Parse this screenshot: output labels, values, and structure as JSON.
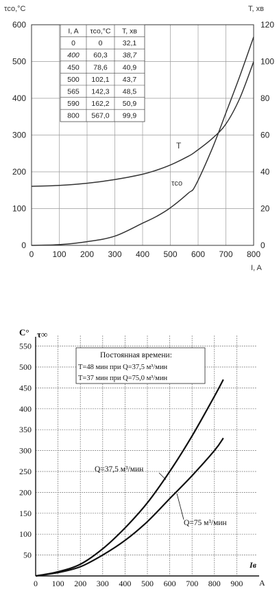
{
  "chart_data": [
    {
      "type": "line",
      "xlabel": "I, A",
      "ylabel_left": "τсо,°С",
      "ylabel_right": "T, хв",
      "xlim": [
        0,
        800
      ],
      "ylim_left": [
        0,
        600
      ],
      "ylim_right": [
        0,
        120
      ],
      "x_ticks": [
        0,
        100,
        200,
        300,
        400,
        500,
        600,
        700,
        800
      ],
      "y_left_ticks": [
        0,
        100,
        200,
        300,
        400,
        500,
        600
      ],
      "y_right_ticks": [
        0,
        20,
        40,
        60,
        80,
        100,
        120
      ],
      "grid": true,
      "series": [
        {
          "name": "T",
          "axis": "right",
          "x": [
            0,
            100,
            200,
            300,
            400,
            450,
            500,
            565,
            590,
            650,
            700,
            750,
            800
          ],
          "y": [
            32.1,
            32.6,
            33.8,
            35.8,
            38.7,
            40.9,
            43.7,
            48.5,
            50.9,
            58,
            66,
            80,
            99.9
          ]
        },
        {
          "name": "τсо",
          "axis": "left",
          "x": [
            0,
            100,
            200,
            300,
            400,
            450,
            500,
            565,
            590,
            650,
            700,
            750,
            800
          ],
          "y": [
            0,
            2,
            10,
            25,
            60.3,
            78.6,
            102.1,
            142.3,
            162.2,
            262,
            360,
            460,
            567
          ]
        }
      ],
      "table": {
        "headers": [
          "I, A",
          "τсо,°С",
          "T, хв"
        ],
        "rows": [
          [
            "0",
            "0",
            "32,1"
          ],
          [
            "400",
            "60,3",
            "38,7"
          ],
          [
            "450",
            "78,6",
            "40,9"
          ],
          [
            "500",
            "102,1",
            "43,7"
          ],
          [
            "565",
            "142,3",
            "48,5"
          ],
          [
            "590",
            "162,2",
            "50,9"
          ],
          [
            "800",
            "567,0",
            "99,9"
          ]
        ]
      }
    },
    {
      "type": "line",
      "xlabel": "Iв",
      "x_unit": "A",
      "ylabel_unit": "C°",
      "ylabel": "τ∞",
      "xlim": [
        0,
        1000
      ],
      "ylim": [
        0,
        575
      ],
      "x_ticks": [
        0,
        100,
        200,
        300,
        400,
        500,
        600,
        700,
        800,
        900
      ],
      "y_ticks": [
        50,
        100,
        150,
        200,
        250,
        300,
        350,
        400,
        450,
        500,
        550
      ],
      "grid": true,
      "annotation_lines": [
        "Постоянная времени:",
        "T=48 мин при Q=37,5 м³/мин",
        "T=37 мин при Q=75,0 м³/мин"
      ],
      "series": [
        {
          "name": "Q=37,5 м³/мин",
          "x": [
            0,
            100,
            200,
            300,
            400,
            500,
            600,
            700,
            800,
            840
          ],
          "y": [
            0,
            10,
            28,
            65,
            115,
            175,
            250,
            335,
            430,
            470
          ]
        },
        {
          "name": "Q=75 м³/мин",
          "x": [
            0,
            100,
            200,
            300,
            400,
            500,
            600,
            700,
            800,
            840
          ],
          "y": [
            0,
            8,
            22,
            50,
            85,
            130,
            185,
            240,
            300,
            330
          ]
        }
      ]
    }
  ]
}
